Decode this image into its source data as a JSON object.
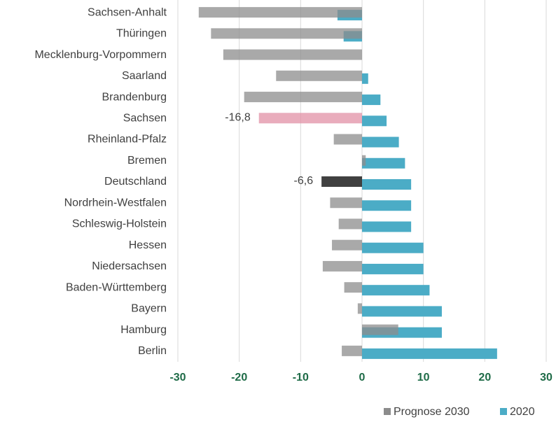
{
  "chart_data": {
    "type": "bar",
    "orientation": "horizontal",
    "categories": [
      "Sachsen-Anhalt",
      "Thüringen",
      "Mecklenburg-Vorpommern",
      "Saarland",
      "Brandenburg",
      "Sachsen",
      "Rheinland-Pfalz",
      "Bremen",
      "Deutschland",
      "Nordrhein-Westfalen",
      "Schleswig-Holstein",
      "Hessen",
      "Niedersachsen",
      "Baden-Württemberg",
      "Bayern",
      "Hamburg",
      "Berlin"
    ],
    "series": [
      {
        "name": "Prognose 2030",
        "color": "#8c8c8c",
        "values": [
          -26.6,
          -24.6,
          -22.6,
          -14.0,
          -19.2,
          -16.8,
          -4.6,
          0.6,
          -6.6,
          -5.2,
          -3.8,
          -4.9,
          -6.4,
          -2.9,
          -0.7,
          5.9,
          -3.3
        ],
        "point_colors": [
          "#8c8c8c",
          "#8c8c8c",
          "#8c8c8c",
          "#8c8c8c",
          "#8c8c8c",
          "#e290a6",
          "#8c8c8c",
          "#8c8c8c",
          "#000000",
          "#8c8c8c",
          "#8c8c8c",
          "#8c8c8c",
          "#8c8c8c",
          "#8c8c8c",
          "#8c8c8c",
          "#8c8c8c",
          "#8c8c8c"
        ],
        "value_labels": [
          null,
          null,
          null,
          null,
          null,
          "-16,8",
          null,
          null,
          "-6,6",
          null,
          null,
          null,
          null,
          null,
          null,
          null,
          null
        ]
      },
      {
        "name": "2020",
        "color": "#4bacc6",
        "values": [
          -4.0,
          -3.0,
          0,
          1.0,
          3.0,
          4.0,
          6.0,
          7.0,
          8.0,
          8.0,
          8.0,
          10.0,
          10.0,
          11.0,
          13.0,
          13.0,
          22.0
        ]
      }
    ],
    "xlim": [
      -30,
      30
    ],
    "xticks": [
      -30,
      -20,
      -10,
      0,
      10,
      20,
      30
    ],
    "grid": true,
    "legend": "bottom-right"
  }
}
